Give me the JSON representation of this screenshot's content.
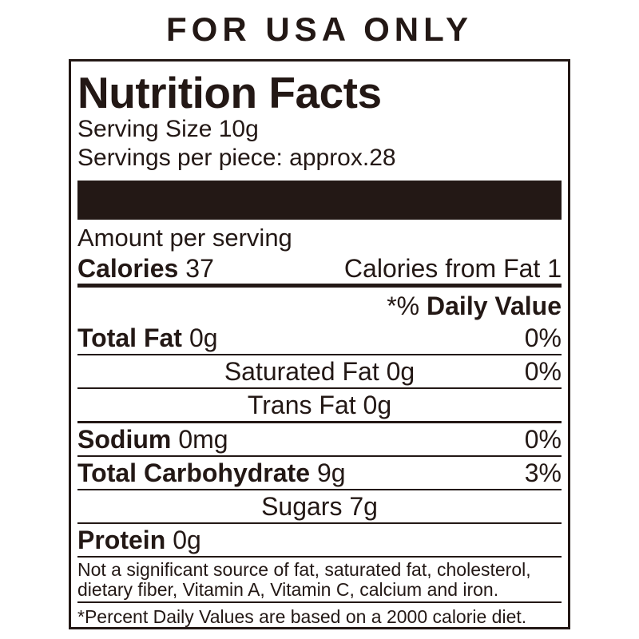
{
  "header": {
    "title": "FOR USA ONLY"
  },
  "label": {
    "title": "Nutrition Facts",
    "serving_size": "Serving Size 10g",
    "servings_per_piece": "Servings per piece: approx.28",
    "amount_per_serving": "Amount per serving",
    "calories_label": "Calories",
    "calories_value": "37",
    "calories_from_fat": "Calories from Fat 1",
    "daily_value_prefix": "*% ",
    "daily_value_label": "Daily Value",
    "rows": {
      "total_fat": {
        "label": "Total Fat",
        "amount": "0g",
        "dv": "0%"
      },
      "saturated_fat": {
        "label": "Saturated Fat 0g",
        "dv": "0%"
      },
      "trans_fat": {
        "label": "Trans Fat 0g"
      },
      "sodium": {
        "label": "Sodium",
        "amount": "0mg",
        "dv": "0%"
      },
      "total_carbohydrate": {
        "label": "Total Carbohydrate",
        "amount": "9g",
        "dv": "3%"
      },
      "sugars": {
        "label": "Sugars 7g"
      },
      "protein": {
        "label": "Protein",
        "amount": "0g"
      }
    },
    "footnote_significant": "Not a significant source of fat, saturated fat, cholesterol, dietary fiber, Vitamin A, Vitamin C, calcium and iron.",
    "footnote_percent": "*Percent Daily Values are based on a 2000 calorie diet."
  },
  "colors": {
    "ink": "#231815",
    "background": "#ffffff"
  }
}
